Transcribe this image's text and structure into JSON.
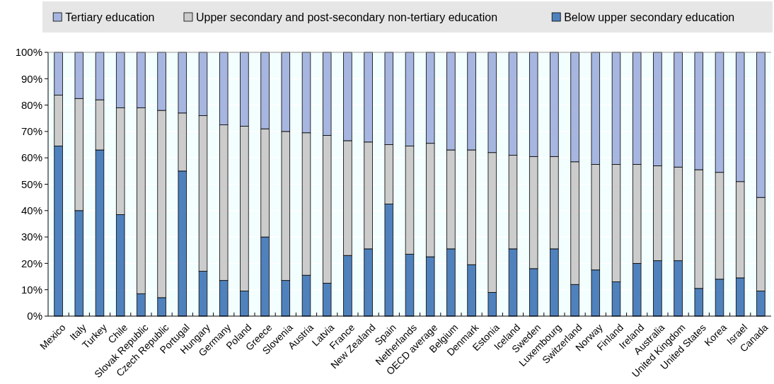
{
  "chart_data": {
    "type": "bar",
    "stacked": true,
    "legend": "top",
    "grid": "y",
    "categories": [
      "Mexico",
      "Italy",
      "Turkey",
      "Chile",
      "Slovak Republic",
      "Czech Republic",
      "Portugal",
      "Hungary",
      "Germany",
      "Poland",
      "Greece",
      "Slovenia",
      "Austria",
      "Latvia",
      "France",
      "New Zealand",
      "Spain",
      "Netherlands",
      "OECD average",
      "Belgium",
      "Denmark",
      "Estonia",
      "Iceland",
      "Sweden",
      "Luxembourg",
      "Switzerland",
      "Norway",
      "Finland",
      "Ireland",
      "Australia",
      "United Kingdom",
      "United States",
      "Korea",
      "Israel",
      "Canada"
    ],
    "series": [
      {
        "name": "Below upper secondary education",
        "color": "#4f81bd",
        "values": [
          64.5,
          40,
          63,
          38.5,
          8.5,
          7,
          55,
          17,
          13.5,
          9.5,
          30,
          13.5,
          15.5,
          12.5,
          23,
          25.5,
          42.5,
          23.5,
          22.5,
          25.5,
          19.5,
          9,
          25.5,
          18,
          25.5,
          12,
          17.5,
          13,
          20,
          21,
          21,
          10.5,
          14,
          14.5,
          9.5
        ]
      },
      {
        "name": "Upper secondary and post-secondary non-tertiary education",
        "color": "#cccccc",
        "values": [
          19.3,
          42.5,
          19,
          40.5,
          70.5,
          71,
          22,
          59,
          59,
          62.5,
          41,
          56.5,
          54,
          56,
          43.5,
          40.5,
          22.5,
          41,
          43,
          37.5,
          43.5,
          53,
          35.5,
          42.5,
          35,
          46.5,
          40,
          44.5,
          37.5,
          36,
          35.5,
          45,
          40.5,
          36.5,
          35.5
        ]
      },
      {
        "name": "Tertiary education",
        "color": "#a6b6e0",
        "values": [
          16.2,
          17.5,
          18,
          21,
          21,
          22,
          23,
          24,
          27.5,
          28,
          29,
          30,
          30.5,
          31.5,
          33.5,
          34,
          35,
          35.5,
          34.5,
          37,
          37,
          38,
          39,
          39.5,
          39.5,
          41.5,
          42.5,
          42.5,
          42.5,
          43,
          43.5,
          44.5,
          45.5,
          49,
          55
        ]
      }
    ],
    "ylim": [
      0,
      100
    ],
    "yticks": [
      {
        "value": 0,
        "label": "0%"
      },
      {
        "value": 10,
        "label": "10%"
      },
      {
        "value": 20,
        "label": "20%"
      },
      {
        "value": 30,
        "label": "30%"
      },
      {
        "value": 40,
        "label": "40%"
      },
      {
        "value": 50,
        "label": "50%"
      },
      {
        "value": 60,
        "label": "60%"
      },
      {
        "value": 70,
        "label": "70%"
      },
      {
        "value": 80,
        "label": "80%"
      },
      {
        "value": 90,
        "label": "90%"
      },
      {
        "value": 100,
        "label": "100%"
      }
    ]
  }
}
